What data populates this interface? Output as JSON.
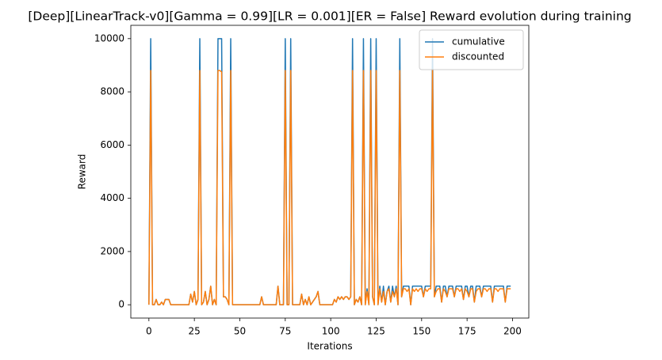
{
  "chart_data": {
    "type": "line",
    "title": "[Deep][LinearTrack-v0][Gamma = 0.99][LR = 0.001][ER = False] Reward evolution during training",
    "xlabel": "Iterations",
    "ylabel": "Reward",
    "x": [
      0,
      1,
      2,
      3,
      4,
      5,
      6,
      7,
      8,
      9,
      10,
      11,
      12,
      13,
      14,
      15,
      16,
      17,
      18,
      19,
      20,
      21,
      22,
      23,
      24,
      25,
      26,
      27,
      28,
      29,
      30,
      31,
      32,
      33,
      34,
      35,
      36,
      37,
      38,
      39,
      40,
      41,
      42,
      43,
      44,
      45,
      46,
      47,
      48,
      49,
      50,
      51,
      52,
      53,
      54,
      55,
      56,
      57,
      58,
      59,
      60,
      61,
      62,
      63,
      64,
      65,
      66,
      67,
      68,
      69,
      70,
      71,
      72,
      73,
      74,
      75,
      76,
      77,
      78,
      79,
      80,
      81,
      82,
      83,
      84,
      85,
      86,
      87,
      88,
      89,
      90,
      91,
      92,
      93,
      94,
      95,
      96,
      97,
      98,
      99,
      100,
      101,
      102,
      103,
      104,
      105,
      106,
      107,
      108,
      109,
      110,
      111,
      112,
      113,
      114,
      115,
      116,
      117,
      118,
      119,
      120,
      121,
      122,
      123,
      124,
      125,
      126,
      127,
      128,
      129,
      130,
      131,
      132,
      133,
      134,
      135,
      136,
      137,
      138,
      139,
      140,
      141,
      142,
      143,
      144,
      145,
      146,
      147,
      148,
      149,
      150,
      151,
      152,
      153,
      154,
      155,
      156,
      157,
      158,
      159,
      160,
      161,
      162,
      163,
      164,
      165,
      166,
      167,
      168,
      169,
      170,
      171,
      172,
      173,
      174,
      175,
      176,
      177,
      178,
      179,
      180,
      181,
      182,
      183,
      184,
      185,
      186,
      187,
      188,
      189,
      190,
      191,
      192,
      193,
      194,
      195,
      196,
      197,
      198,
      199
    ],
    "series": [
      {
        "name": "cumulative",
        "color": "#1f77b4",
        "values": [
          0,
          10000,
          0,
          0,
          200,
          0,
          0,
          100,
          0,
          200,
          200,
          200,
          0,
          0,
          0,
          0,
          0,
          0,
          0,
          0,
          0,
          0,
          0,
          400,
          100,
          500,
          0,
          200,
          10000,
          0,
          100,
          500,
          0,
          200,
          700,
          0,
          200,
          0,
          10000,
          10000,
          10000,
          300,
          300,
          200,
          0,
          10000,
          0,
          0,
          0,
          0,
          0,
          0,
          0,
          0,
          0,
          0,
          0,
          0,
          0,
          0,
          0,
          0,
          300,
          0,
          0,
          0,
          0,
          0,
          0,
          0,
          0,
          700,
          0,
          0,
          0,
          10000,
          0,
          0,
          10000,
          0,
          0,
          0,
          0,
          0,
          400,
          0,
          200,
          0,
          300,
          0,
          100,
          200,
          300,
          500,
          0,
          0,
          0,
          0,
          0,
          0,
          0,
          0,
          200,
          100,
          300,
          200,
          300,
          200,
          300,
          300,
          200,
          300,
          10000,
          0,
          200,
          100,
          300,
          0,
          10000,
          0,
          600,
          0,
          10000,
          300,
          0,
          10000,
          0,
          700,
          100,
          700,
          0,
          500,
          700,
          100,
          700,
          300,
          700,
          0,
          10000,
          300,
          700,
          700,
          700,
          700,
          0,
          700,
          700,
          700,
          700,
          700,
          700,
          300,
          700,
          700,
          700,
          700,
          10000,
          300,
          700,
          700,
          700,
          100,
          700,
          700,
          300,
          700,
          700,
          700,
          300,
          700,
          700,
          700,
          700,
          200,
          700,
          700,
          300,
          700,
          700,
          100,
          700,
          700,
          700,
          300,
          700,
          700,
          700,
          700,
          700,
          100,
          700,
          700,
          700,
          700,
          700,
          700,
          100,
          700,
          700,
          700
        ]
      },
      {
        "name": "discounted",
        "color": "#ff7f0e",
        "values": [
          0,
          8800,
          0,
          0,
          200,
          0,
          0,
          100,
          0,
          200,
          200,
          200,
          0,
          0,
          0,
          0,
          0,
          0,
          0,
          0,
          0,
          0,
          0,
          400,
          100,
          500,
          0,
          200,
          8800,
          0,
          100,
          500,
          0,
          200,
          700,
          0,
          200,
          0,
          8800,
          8800,
          8750,
          300,
          300,
          200,
          0,
          8800,
          0,
          0,
          0,
          0,
          0,
          0,
          0,
          0,
          0,
          0,
          0,
          0,
          0,
          0,
          0,
          0,
          300,
          0,
          0,
          0,
          0,
          0,
          0,
          0,
          0,
          700,
          0,
          0,
          0,
          8800,
          0,
          0,
          8800,
          0,
          0,
          0,
          0,
          0,
          400,
          0,
          200,
          0,
          300,
          0,
          100,
          200,
          300,
          500,
          0,
          0,
          0,
          0,
          0,
          0,
          0,
          0,
          200,
          100,
          300,
          200,
          300,
          200,
          300,
          300,
          200,
          300,
          8800,
          0,
          200,
          100,
          300,
          0,
          8800,
          0,
          500,
          0,
          8800,
          300,
          0,
          8800,
          0,
          600,
          100,
          500,
          0,
          500,
          600,
          100,
          500,
          300,
          600,
          0,
          8800,
          300,
          600,
          600,
          500,
          600,
          0,
          600,
          500,
          600,
          500,
          600,
          600,
          300,
          600,
          500,
          600,
          600,
          8800,
          300,
          500,
          600,
          600,
          100,
          600,
          500,
          300,
          600,
          600,
          600,
          300,
          600,
          600,
          500,
          600,
          200,
          600,
          500,
          300,
          600,
          600,
          100,
          500,
          600,
          600,
          300,
          600,
          600,
          500,
          600,
          600,
          100,
          600,
          600,
          500,
          600,
          600,
          600,
          100,
          600,
          600,
          600
        ]
      }
    ],
    "xlim": [
      -9.95,
      208.95
    ],
    "xticks": [
      0,
      25,
      50,
      75,
      100,
      125,
      150,
      175,
      200
    ],
    "ylim": [
      -500,
      10500
    ],
    "yticks": [
      0,
      2000,
      4000,
      6000,
      8000,
      10000
    ],
    "grid": false,
    "legend": "upper right"
  }
}
